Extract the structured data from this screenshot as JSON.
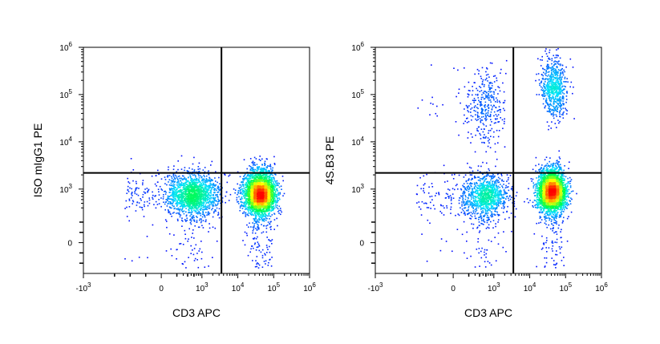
{
  "chart_data": [
    {
      "type": "scatter",
      "subtype": "flow-cytometry-density-dot-plot",
      "xlabel": "CD3 APC",
      "ylabel": "ISO mIgG1 PE",
      "x_scale": "biexponential",
      "y_scale": "biexponential",
      "xlim": [
        -1000,
        1000000
      ],
      "ylim": [
        -300,
        1000000
      ],
      "x_ticks": [
        {
          "value": -1000,
          "base": "-10",
          "exp": "3"
        },
        {
          "value": 0,
          "base": "0",
          "exp": ""
        },
        {
          "value": 1000,
          "base": "10",
          "exp": "3"
        },
        {
          "value": 10000,
          "base": "10",
          "exp": "4"
        },
        {
          "value": 100000,
          "base": "10",
          "exp": "5"
        },
        {
          "value": 1000000,
          "base": "10",
          "exp": "6"
        }
      ],
      "y_ticks": [
        {
          "value": 0,
          "base": "0",
          "exp": ""
        },
        {
          "value": 1000,
          "base": "10",
          "exp": "3"
        },
        {
          "value": 10000,
          "base": "10",
          "exp": "4"
        },
        {
          "value": 100000,
          "base": "10",
          "exp": "5"
        },
        {
          "value": 1000000,
          "base": "10",
          "exp": "6"
        }
      ],
      "quadrant_gate": {
        "x": 3500,
        "y": 2200
      },
      "populations": [
        {
          "name": "CD3- PE-",
          "center": [
            500,
            750
          ],
          "spread_decades": [
            0.38,
            0.25
          ],
          "count": 1800
        },
        {
          "name": "CD3+ PE-",
          "center": [
            40000,
            800
          ],
          "spread_decades": [
            0.22,
            0.25
          ],
          "count": 3200
        }
      ],
      "colormap": [
        "#0000ff",
        "#00e5ff",
        "#00ff40",
        "#ffff00",
        "#ff0000"
      ],
      "grid": false
    },
    {
      "type": "scatter",
      "subtype": "flow-cytometry-density-dot-plot",
      "xlabel": "CD3 APC",
      "ylabel": "4S.B3 PE",
      "x_scale": "biexponential",
      "y_scale": "biexponential",
      "xlim": [
        -1000,
        1000000
      ],
      "ylim": [
        -300,
        1000000
      ],
      "x_ticks": [
        {
          "value": -1000,
          "base": "-10",
          "exp": "3"
        },
        {
          "value": 0,
          "base": "0",
          "exp": ""
        },
        {
          "value": 1000,
          "base": "10",
          "exp": "3"
        },
        {
          "value": 10000,
          "base": "10",
          "exp": "4"
        },
        {
          "value": 100000,
          "base": "10",
          "exp": "5"
        },
        {
          "value": 1000000,
          "base": "10",
          "exp": "6"
        }
      ],
      "y_ticks": [
        {
          "value": 0,
          "base": "0",
          "exp": ""
        },
        {
          "value": 1000,
          "base": "10",
          "exp": "3"
        },
        {
          "value": 10000,
          "base": "10",
          "exp": "4"
        },
        {
          "value": 100000,
          "base": "10",
          "exp": "5"
        },
        {
          "value": 1000000,
          "base": "10",
          "exp": "6"
        }
      ],
      "quadrant_gate": {
        "x": 3500,
        "y": 2200
      },
      "populations": [
        {
          "name": "CD3- PE-",
          "center": [
            500,
            700
          ],
          "spread_decades": [
            0.35,
            0.25
          ],
          "count": 1200
        },
        {
          "name": "CD3- PE+",
          "center": [
            500,
            55000
          ],
          "spread_decades": [
            0.3,
            0.38
          ],
          "count": 350
        },
        {
          "name": "CD3+ PE-",
          "center": [
            40000,
            900
          ],
          "spread_decades": [
            0.2,
            0.25
          ],
          "count": 3000
        },
        {
          "name": "CD3+ PE+",
          "center": [
            45000,
            150000
          ],
          "spread_decades": [
            0.17,
            0.32
          ],
          "count": 650
        }
      ],
      "colormap": [
        "#0000ff",
        "#00e5ff",
        "#00ff40",
        "#ffff00",
        "#ff0000"
      ],
      "grid": false
    }
  ]
}
